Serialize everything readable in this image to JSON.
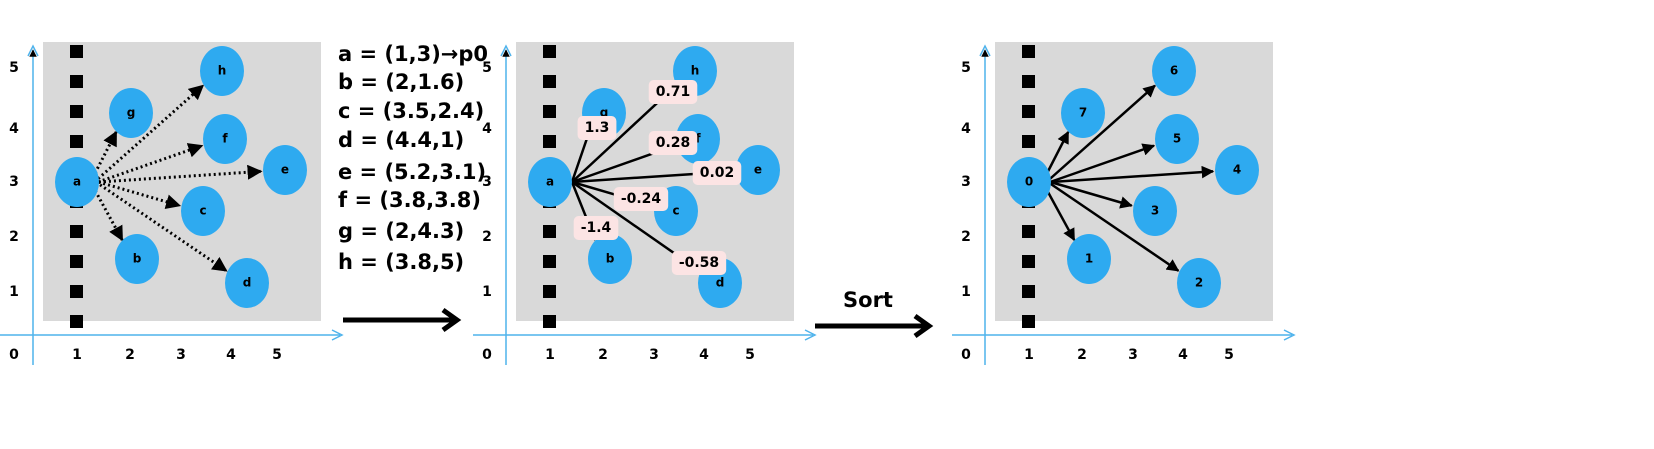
{
  "panels": [
    {
      "x_ticks": [
        "0",
        "1",
        "2",
        "3",
        "4",
        "5"
      ],
      "y_ticks": [
        "5",
        "4",
        "3",
        "2",
        "1"
      ],
      "nodes": [
        "a",
        "b",
        "c",
        "d",
        "e",
        "f",
        "g",
        "h"
      ]
    },
    {
      "x_ticks": [
        "0",
        "1",
        "2",
        "3",
        "4",
        "5"
      ],
      "y_ticks": [
        "5",
        "4",
        "3",
        "2",
        "1"
      ],
      "nodes": [
        "a",
        "b",
        "c",
        "d",
        "e",
        "f",
        "g",
        "h"
      ],
      "edge_labels": [
        "-1.4",
        "-0.24",
        "-0.58",
        "0.02",
        "0.28",
        "1.3",
        "0.71"
      ]
    },
    {
      "x_ticks": [
        "0",
        "1",
        "2",
        "3",
        "4",
        "5"
      ],
      "y_ticks": [
        "5",
        "4",
        "3",
        "2",
        "1"
      ],
      "nodes": [
        "0",
        "1",
        "3",
        "2",
        "4",
        "5",
        "7",
        "6"
      ]
    }
  ],
  "points": [
    "a = (1,3)→p0",
    "b = (2,1.6)",
    "c = (3.5,2.4)",
    "d = (4.4,1)",
    "e = (5.2,3.1)",
    "f = (3.8,3.8)",
    "g = (2,4.3)",
    "h = (3.8,5)"
  ],
  "step_label": "Sort"
}
